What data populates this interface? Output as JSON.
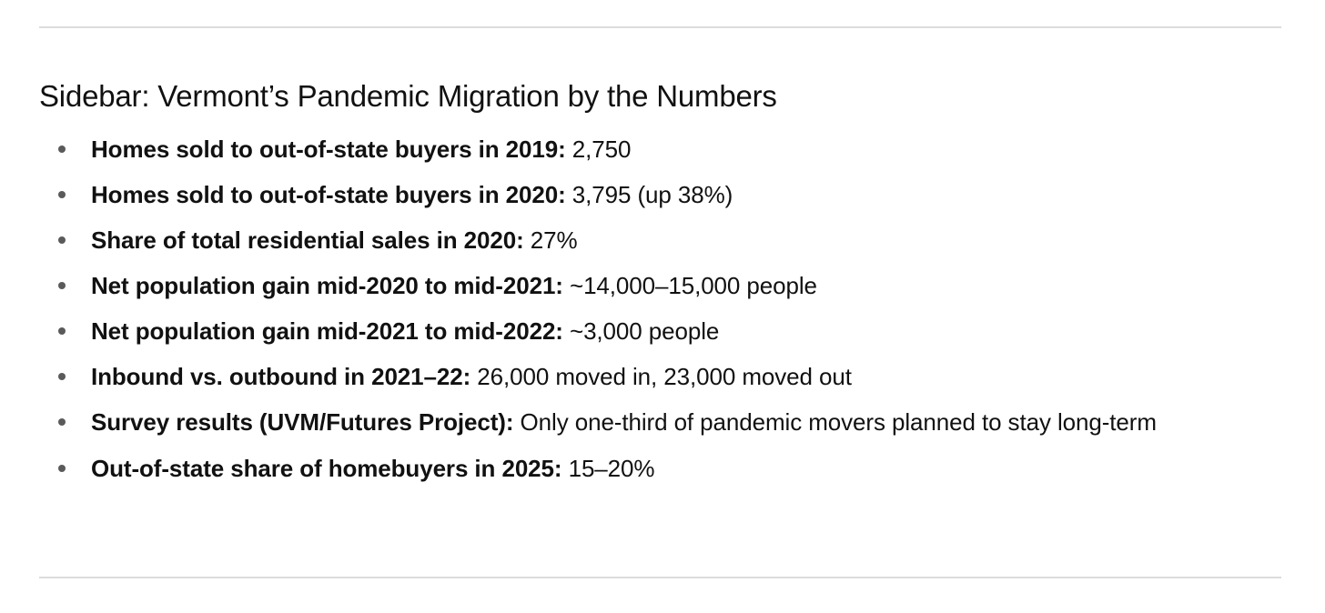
{
  "heading": "Sidebar: Vermont’s Pandemic Migration by the Numbers",
  "facts": [
    {
      "label": "Homes sold to out-of-state buyers in 2019:",
      "value": " 2,750"
    },
    {
      "label": "Homes sold to out-of-state buyers in 2020:",
      "value": " 3,795 (up 38%)"
    },
    {
      "label": "Share of total residential sales in 2020:",
      "value": " 27%"
    },
    {
      "label": "Net population gain mid-2020 to mid-2021:",
      "value": " ~14,000–15,000 people"
    },
    {
      "label": "Net population gain mid-2021 to mid-2022:",
      "value": " ~3,000 people"
    },
    {
      "label": "Inbound vs. outbound in 2021–22:",
      "value": " 26,000 moved in, 23,000 moved out"
    },
    {
      "label": "Survey results (UVM/Futures Project):",
      "value": " Only one-third of pandemic movers planned to stay long-term"
    },
    {
      "label": "Out-of-state share of homebuyers in 2025:",
      "value": " 15–20%"
    }
  ]
}
